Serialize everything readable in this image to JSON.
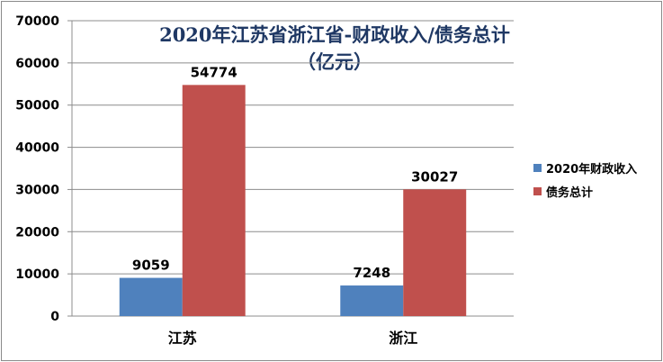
{
  "chart_data": {
    "type": "bar",
    "title_line1": "2020年江苏省浙江省-财政收入/债务总计",
    "title_line2": "（亿元）",
    "categories": [
      "江苏",
      "浙江"
    ],
    "series": [
      {
        "name": "2020年财政收入",
        "color": "#4f81bd",
        "values": [
          9059,
          7248
        ]
      },
      {
        "name": "债务总计",
        "color": "#c0504d",
        "values": [
          54774,
          30027
        ]
      }
    ],
    "ylim": [
      0,
      70000
    ],
    "yticks": [
      0,
      10000,
      20000,
      30000,
      40000,
      50000,
      60000,
      70000
    ],
    "grid": true,
    "legend_position": "right"
  }
}
